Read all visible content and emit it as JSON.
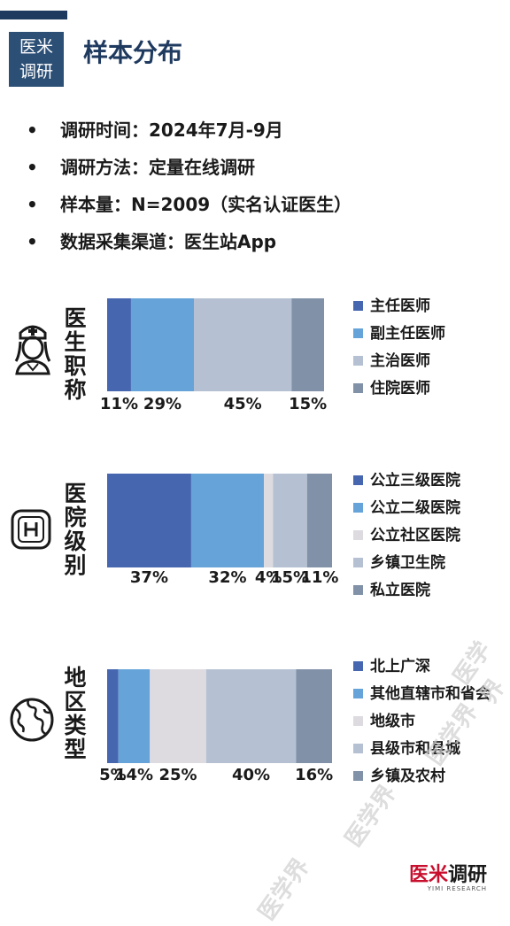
{
  "header": {
    "badge_line1": "医米",
    "badge_line2": "调研",
    "title": "样本分布"
  },
  "info": [
    "调研时间：2024年7月-9月",
    "调研方法：定量在线调研",
    "样本量：N=2009（实名认证医生）",
    "数据采集渠道：医生站App"
  ],
  "chart_data": [
    {
      "type": "bar",
      "orientation": "horizontal-stacked-100",
      "title": "医生职称",
      "categories": [
        "主任医师",
        "副主任医师",
        "主治医师",
        "住院医师"
      ],
      "values": [
        11,
        29,
        45,
        15
      ],
      "labels": [
        "11%",
        "29%",
        "45%",
        "15%"
      ],
      "colors": [
        "#4666b0",
        "#65a3d8",
        "#b5c1d2",
        "#8191a8"
      ],
      "legend": "right"
    },
    {
      "type": "bar",
      "orientation": "horizontal-stacked-100",
      "title": "医院级别",
      "categories": [
        "公立三级医院",
        "公立二级医院",
        "公立社区医院",
        "乡镇卫生院",
        "私立医院"
      ],
      "values": [
        37,
        32,
        4,
        15,
        11
      ],
      "labels": [
        "37%",
        "32%",
        "4%",
        "15%",
        "11%"
      ],
      "colors": [
        "#4666b0",
        "#65a3d8",
        "#dedbe0",
        "#b5c1d2",
        "#8191a8"
      ],
      "legend": "right"
    },
    {
      "type": "bar",
      "orientation": "horizontal-stacked-100",
      "title": "地区类型",
      "categories": [
        "北上广深",
        "其他直辖市和省会",
        "地级市",
        "县级市和县城",
        "乡镇及农村"
      ],
      "values": [
        5,
        14,
        25,
        40,
        16
      ],
      "labels": [
        "5%",
        "14%",
        "25%",
        "40%",
        "16%"
      ],
      "colors": [
        "#4666b0",
        "#65a3d8",
        "#dedbe0",
        "#b5c1d2",
        "#8191a8"
      ],
      "legend": "right"
    }
  ],
  "icons": [
    "nurse-icon",
    "hospital-icon",
    "globe-icon"
  ],
  "logo": {
    "main_red": "医米",
    "main_dark": "调研",
    "sub": "YIMI RESEARCH"
  },
  "watermark": "医学界"
}
